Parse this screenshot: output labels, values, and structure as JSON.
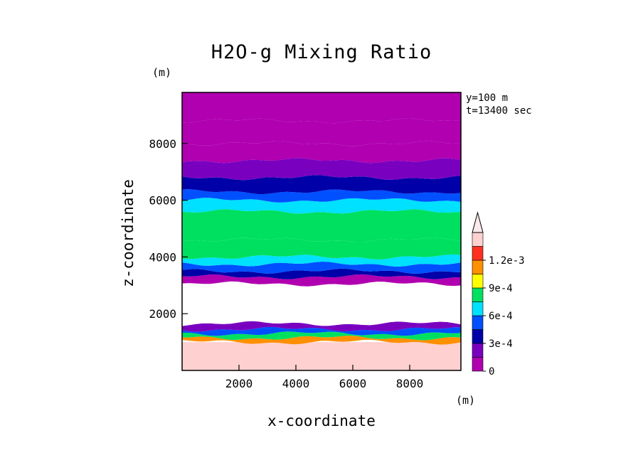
{
  "chart_data": {
    "type": "heatmap",
    "title": "H2O-g Mixing Ratio",
    "xlabel": "x-coordinate",
    "ylabel": "z-coordinate",
    "x_unit": "(m)",
    "y_unit": "(m)",
    "xlim": [
      0,
      9800
    ],
    "ylim": [
      0,
      9800
    ],
    "x_ticks": [
      2000,
      4000,
      6000,
      8000
    ],
    "y_ticks": [
      2000,
      4000,
      6000,
      8000
    ],
    "grid": false,
    "annotations": [
      "y=100 m",
      "t=13400 sec"
    ],
    "colorbar": {
      "levels": [
        0,
        0.00015,
        0.0003,
        0.00045,
        0.0006,
        0.00075,
        0.0009,
        0.00105,
        0.0012
      ],
      "labels": [
        "0",
        "3e-4",
        "6e-4",
        "9e-4",
        "1.2e-3"
      ],
      "label_values": [
        0,
        0.0003,
        0.0006,
        0.0009,
        0.0012
      ],
      "colors": [
        "#b000b0",
        "#7a00c0",
        "#0000a8",
        "#0050ff",
        "#00e0ff",
        "#00e060",
        "#ffff00",
        "#ff9000",
        "#ff3020",
        "#ffd0d0"
      ],
      "extend": "max",
      "above_max_color": "#fbeaea"
    },
    "bands": [
      {
        "z_bottom": 0,
        "z_top": 1000,
        "mean_value": 0.00125
      },
      {
        "z_bottom": 1000,
        "z_top": 1150,
        "mean_value": 0.00112
      },
      {
        "z_bottom": 1150,
        "z_top": 1300,
        "mean_value": 0.0008
      },
      {
        "z_bottom": 1300,
        "z_top": 1450,
        "mean_value": 0.0005
      },
      {
        "z_bottom": 1450,
        "z_top": 1650,
        "mean_value": 0.00015
      },
      {
        "z_bottom": 1650,
        "z_top": 3050,
        "mean_value": null
      },
      {
        "z_bottom": 3050,
        "z_top": 3300,
        "mean_value": 0.0001
      },
      {
        "z_bottom": 3300,
        "z_top": 3500,
        "mean_value": 0.00035
      },
      {
        "z_bottom": 3500,
        "z_top": 3750,
        "mean_value": 0.0005
      },
      {
        "z_bottom": 3750,
        "z_top": 4000,
        "mean_value": 0.00065
      },
      {
        "z_bottom": 4000,
        "z_top": 4600,
        "mean_value": 0.00085
      },
      {
        "z_bottom": 4600,
        "z_top": 5600,
        "mean_value": 0.00075
      },
      {
        "z_bottom": 5600,
        "z_top": 6000,
        "mean_value": 0.00062
      },
      {
        "z_bottom": 6000,
        "z_top": 6300,
        "mean_value": 0.0005
      },
      {
        "z_bottom": 6300,
        "z_top": 6800,
        "mean_value": 0.00038
      },
      {
        "z_bottom": 6800,
        "z_top": 7400,
        "mean_value": 0.00022
      },
      {
        "z_bottom": 7400,
        "z_top": 8000,
        "mean_value": 0.0001
      },
      {
        "z_bottom": 8000,
        "z_top": 8800,
        "mean_value": 3e-05
      },
      {
        "z_bottom": 8800,
        "z_top": 9800,
        "mean_value": 0.0
      }
    ]
  }
}
